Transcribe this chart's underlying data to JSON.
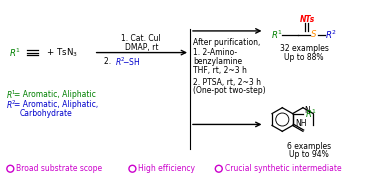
{
  "bg_color": "#ffffff",
  "r1_color": "#008000",
  "r2_color": "#0000cc",
  "nts_color": "#ff0000",
  "s_color": "#ff8c00",
  "black": "#000000",
  "purple": "#cc00cc",
  "reagent1_line1": "1. Cat. CuI",
  "reagent1_line2": "DMAP, rt",
  "product1_examples": "32 examples",
  "product1_yield": "Up to 88%",
  "product2_examples": "6 examples",
  "product2_yield": "Up to 94%",
  "after_purif": "After purification,",
  "step2_line1": "1. 2-Amino-",
  "step2_line2": "benzylamine",
  "step2_line3": "THF, rt, 2~3 h",
  "step2_line4": "2. PTSA, rt, 2~3 h",
  "step2_line5": "(One-pot two-step)"
}
